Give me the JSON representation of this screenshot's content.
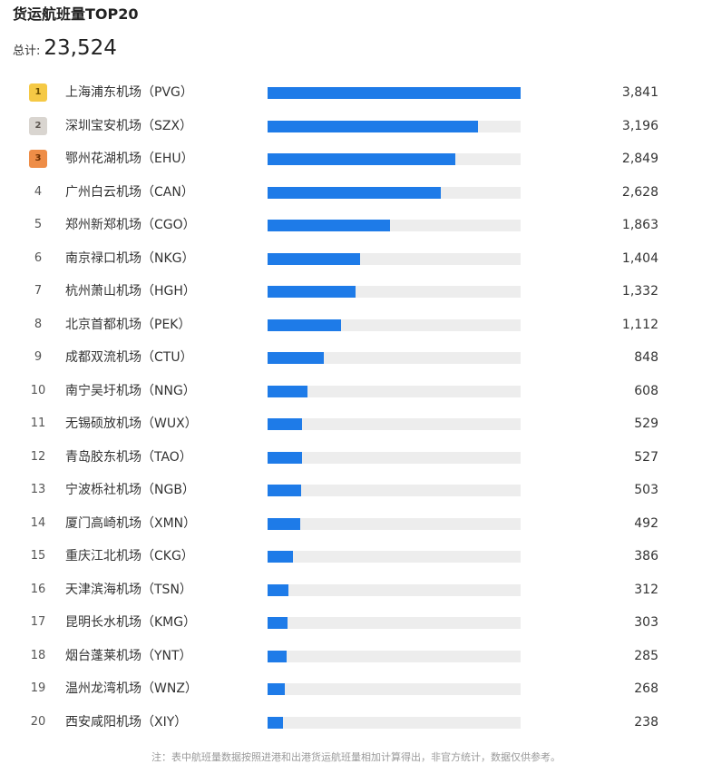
{
  "title": "货运航班量TOP20",
  "total_label": "总计:",
  "total_value": "23,524",
  "footnote": "注：表中航班量数据按照进港和出港货运航班量相加计算得出，非官方统计，数据仅供参考。",
  "colors": {
    "bar": "#1e7be8",
    "track": "#ededed",
    "gold": "#f5c945",
    "silver": "#d9d5d0",
    "bronze": "#ee8d47"
  },
  "chart_data": {
    "type": "bar",
    "orientation": "horizontal",
    "title": "货运航班量TOP20",
    "xlim": [
      0,
      3841
    ],
    "ranks": [
      "1",
      "2",
      "3",
      "4",
      "5",
      "6",
      "7",
      "8",
      "9",
      "10",
      "11",
      "12",
      "13",
      "14",
      "15",
      "16",
      "17",
      "18",
      "19",
      "20"
    ],
    "categories": [
      "上海浦东机场（PVG）",
      "深圳宝安机场（SZX）",
      "鄂州花湖机场（EHU）",
      "广州白云机场（CAN）",
      "郑州新郑机场（CGO）",
      "南京禄口机场（NKG）",
      "杭州萧山机场（HGH）",
      "北京首都机场（PEK）",
      "成都双流机场（CTU）",
      "南宁吴圩机场（NNG）",
      "无锡硕放机场（WUX）",
      "青岛胶东机场（TAO）",
      "宁波栎社机场（NGB）",
      "厦门高崎机场（XMN）",
      "重庆江北机场（CKG）",
      "天津滨海机场（TSN）",
      "昆明长水机场（KMG）",
      "烟台蓬莱机场（YNT）",
      "温州龙湾机场（WNZ）",
      "西安咸阳机场（XIY）"
    ],
    "values": [
      3841,
      3196,
      2849,
      2628,
      1863,
      1404,
      1332,
      1112,
      848,
      608,
      529,
      527,
      503,
      492,
      386,
      312,
      303,
      285,
      268,
      238
    ],
    "value_labels": [
      "3,841",
      "3,196",
      "2,849",
      "2,628",
      "1,863",
      "1,404",
      "1,332",
      "1,112",
      "848",
      "608",
      "529",
      "527",
      "503",
      "492",
      "386",
      "312",
      "303",
      "285",
      "268",
      "238"
    ]
  }
}
